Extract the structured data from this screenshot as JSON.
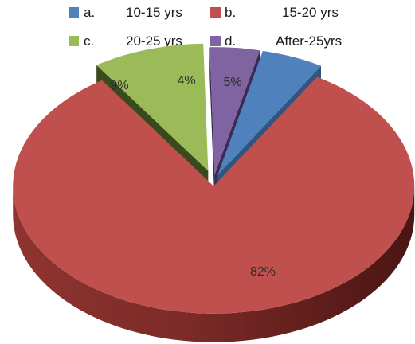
{
  "chart_data": {
    "type": "pie",
    "title": "",
    "categories": [
      {
        "letter": "a.",
        "label": "10-15 yrs"
      },
      {
        "letter": "b.",
        "label": "15-20 yrs"
      },
      {
        "letter": "c.",
        "label": "20-25 yrs"
      },
      {
        "letter": "d.",
        "label": "After-25yrs"
      }
    ],
    "values": [
      5,
      82,
      9,
      4
    ],
    "data_labels": [
      "5%",
      "82%",
      "9%",
      "4%"
    ],
    "colors": [
      "#4f81bd",
      "#c0504d",
      "#9bbb59",
      "#8064a2"
    ],
    "legend_position": "top",
    "style": "3d-exploded"
  }
}
